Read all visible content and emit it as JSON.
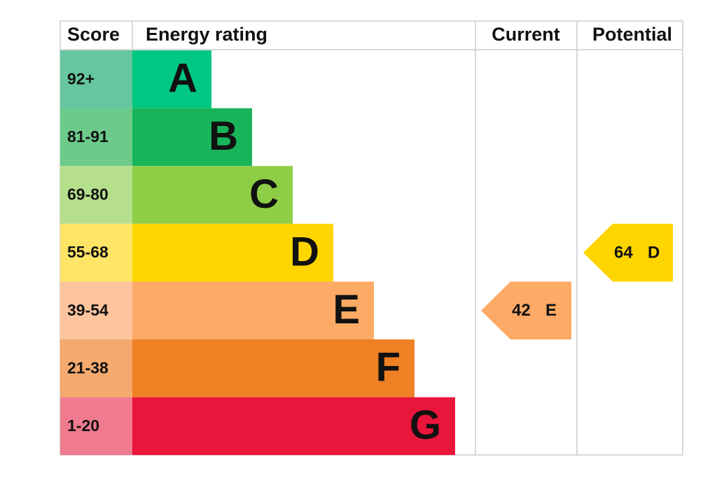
{
  "header": {
    "score": "Score",
    "rating": "Energy rating",
    "current": "Current",
    "potential": "Potential"
  },
  "bands": [
    {
      "score": "92+",
      "letter": "A",
      "color": "#00c781",
      "score_color": "#66c6a0"
    },
    {
      "score": "81-91",
      "letter": "B",
      "color": "#19b459",
      "score_color": "#6ccb8b"
    },
    {
      "score": "69-80",
      "letter": "C",
      "color": "#8dce46",
      "score_color": "#b6df8c"
    },
    {
      "score": "55-68",
      "letter": "D",
      "color": "#ffd500",
      "score_color": "#ffe566"
    },
    {
      "score": "39-54",
      "letter": "E",
      "color": "#fcaa65",
      "score_color": "#fdc49d"
    },
    {
      "score": "21-38",
      "letter": "F",
      "color": "#ef8023",
      "score_color": "#f4a96e"
    },
    {
      "score": "1-20",
      "letter": "G",
      "color": "#e9153b",
      "score_color": "#f07a8e"
    }
  ],
  "current": {
    "score": 42,
    "rating": "E"
  },
  "potential": {
    "score": 64,
    "rating": "D"
  }
}
